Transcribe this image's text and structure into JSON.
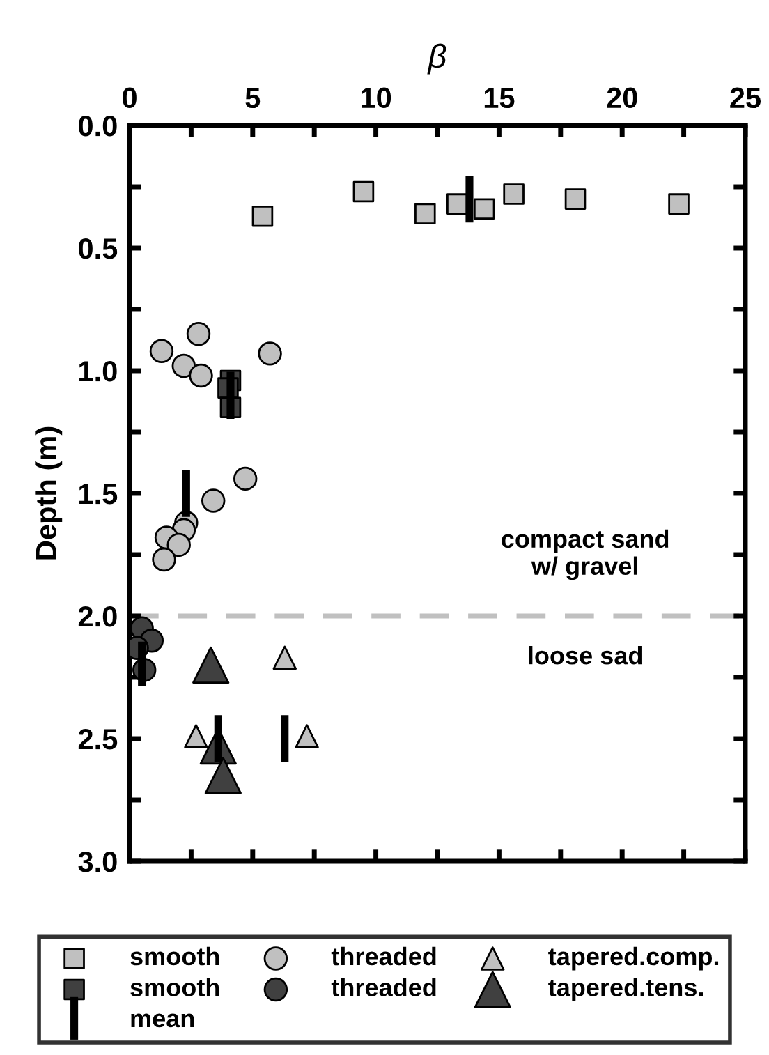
{
  "chart_data": {
    "type": "scatter",
    "xlabel": "β",
    "ylabel": "Depth (m)",
    "xlim": [
      0,
      25
    ],
    "xticks": [
      0,
      {
        "value": 2.5,
        "label": null
      },
      5,
      {
        "value": 7.5,
        "label": null
      },
      10,
      {
        "value": 12.5,
        "label": null
      },
      15,
      {
        "value": 17.5,
        "label": null
      },
      20,
      {
        "value": 22.5,
        "label": null
      },
      25
    ],
    "ylim": [
      3.0,
      0.0
    ],
    "yticks": [
      {
        "value": 0,
        "label": "0.0"
      },
      {
        "value": 0.25,
        "label": null
      },
      0.5,
      {
        "value": 0.75,
        "label": null
      },
      {
        "value": 1,
        "label": "1.0"
      },
      {
        "value": 1.25,
        "label": null
      },
      1.5,
      {
        "value": 1.75,
        "label": null
      },
      {
        "value": 2,
        "label": "2.0"
      },
      {
        "value": 2.25,
        "label": null
      },
      2.5,
      {
        "value": 2.75,
        "label": null
      },
      {
        "value": 3,
        "label": "3.0"
      }
    ],
    "grid": false,
    "legend": "bottom",
    "series": [
      {
        "name": "smooth",
        "color": "#c0c0c0",
        "marker": "square",
        "x": [
          5.4,
          9.5,
          12.0,
          13.3,
          14.4,
          15.6,
          18.1,
          22.3
        ],
        "values": [
          0.37,
          0.27,
          0.36,
          0.32,
          0.34,
          0.28,
          0.3,
          0.32
        ]
      },
      {
        "name": "smooth",
        "color": "#404040",
        "marker": "square",
        "x": [
          4.1,
          4.0,
          4.1
        ],
        "values": [
          1.04,
          1.07,
          1.15
        ]
      },
      {
        "name": "mean",
        "type": "line",
        "color": "#000000",
        "marker": "none",
        "x": [
          13.8,
          13.8,
          null,
          4.1,
          4.1,
          null,
          2.3,
          2.3,
          null,
          0.5,
          0.5,
          null,
          6.3,
          6.3,
          null,
          3.6,
          3.6
        ],
        "values": [
          0.22,
          0.38,
          null,
          1.02,
          1.18,
          null,
          1.42,
          1.58,
          null,
          2.12,
          2.27,
          null,
          2.42,
          2.58,
          null,
          2.42,
          2.58
        ]
      },
      {
        "name": "threaded",
        "color": "#c0c0c0",
        "marker": "circle",
        "x": [
          2.8,
          1.3,
          5.7,
          2.2,
          2.9,
          4.7,
          3.4,
          2.3,
          2.2,
          1.5,
          2.0,
          1.4
        ],
        "values": [
          0.85,
          0.92,
          0.93,
          0.98,
          1.02,
          1.44,
          1.53,
          1.62,
          1.65,
          1.68,
          1.71,
          1.77
        ]
      },
      {
        "name": "threaded",
        "color": "#404040",
        "marker": "circle",
        "x": [
          0.5,
          0.9,
          0.3,
          0.6
        ],
        "values": [
          2.05,
          2.1,
          2.13,
          2.22
        ]
      },
      {
        "name": "tapered.comp.",
        "color": "#c0c0c0",
        "marker": "triangle",
        "x": [
          6.3,
          2.7,
          7.2
        ],
        "values": [
          2.17,
          2.49,
          2.49
        ]
      },
      {
        "name": "tapered.tens.",
        "color": "#404040",
        "marker": "triangle_large",
        "x": [
          3.3,
          3.6,
          3.8
        ],
        "values": [
          2.2,
          2.53,
          2.65
        ]
      }
    ],
    "ref_lines": [
      {
        "axis": "y",
        "value": 2.0,
        "label": null,
        "color": "#c0c0c0",
        "line_style": "dashed"
      }
    ],
    "annotations": [
      "compact sand\nw/ gravel",
      "loose sad"
    ]
  }
}
